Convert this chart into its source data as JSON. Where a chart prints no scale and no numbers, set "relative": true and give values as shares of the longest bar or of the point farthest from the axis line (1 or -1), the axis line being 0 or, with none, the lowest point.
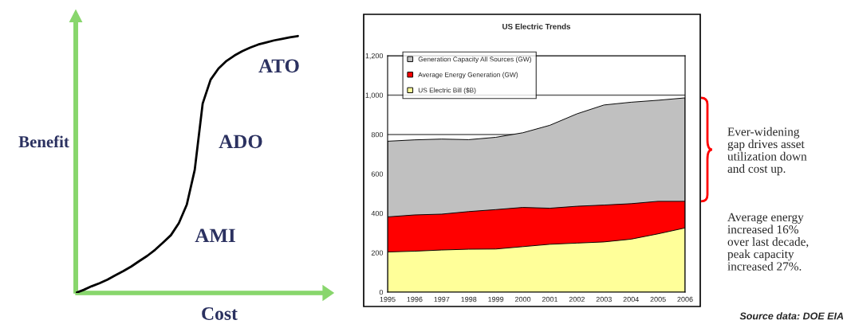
{
  "chart_data": [
    {
      "type": "line",
      "relative": true,
      "xlabel": "Cost",
      "ylabel": "Benefit",
      "color": "#000000",
      "categories": [
        null,
        null,
        null,
        null,
        null,
        null,
        null,
        null,
        null,
        null,
        null,
        null,
        null,
        null,
        null,
        null,
        null,
        null,
        null,
        null,
        null,
        null,
        null,
        null,
        null,
        null,
        null,
        null,
        null
      ],
      "values": [
        0,
        0.012,
        0.026,
        0.038,
        0.052,
        0.069,
        0.085,
        0.103,
        0.124,
        0.144,
        0.168,
        0.196,
        0.225,
        0.272,
        0.344,
        0.479,
        0.737,
        0.83,
        0.874,
        0.903,
        0.924,
        0.941,
        0.955,
        0.967,
        0.975,
        0.983,
        0.989,
        0.995,
        1
      ],
      "annotations": [
        "ATO",
        "ADO",
        "AMI"
      ]
    },
    {
      "type": "area",
      "title": "US Electric Trends",
      "categories": [
        "1995",
        "1996",
        "1997",
        "1998",
        "1999",
        "2000",
        "2001",
        "2002",
        "2003",
        "2004",
        "2005",
        "2006"
      ],
      "series": [
        {
          "name": "Generation Capacity All Sources (GW)",
          "color": "#c0c0c0",
          "values": [
            766,
            773,
            777,
            774,
            786,
            809,
            847,
            905,
            950,
            964,
            974,
            986
          ]
        },
        {
          "name": "Average Energy Generation (GW)",
          "color": "#ff0000",
          "values": [
            382,
            392,
            396,
            409,
            419,
            430,
            426,
            436,
            442,
            449,
            461,
            461
          ]
        },
        {
          "name": "US Electric Bill ($B)",
          "color": "#ffff99",
          "values": [
            204,
            208,
            214,
            218,
            219,
            231,
            243,
            249,
            255,
            269,
            296,
            326
          ]
        }
      ],
      "ylim": [
        0,
        1200
      ],
      "yticks": [
        0,
        200,
        400,
        600,
        800,
        {
          "value": 1000,
          "label": "1,000"
        },
        {
          "value": 1200,
          "label": "1,200"
        }
      ],
      "grid": "y",
      "legend": "top left",
      "annotations": [
        "Ever-widening\ngap drives asset\nutilization down\nand cost up.",
        "Average energy\nincreased 16%\nover last decade,\npeak capacity\nincreased 27%.",
        "Source data: DOE EIA"
      ]
    }
  ]
}
